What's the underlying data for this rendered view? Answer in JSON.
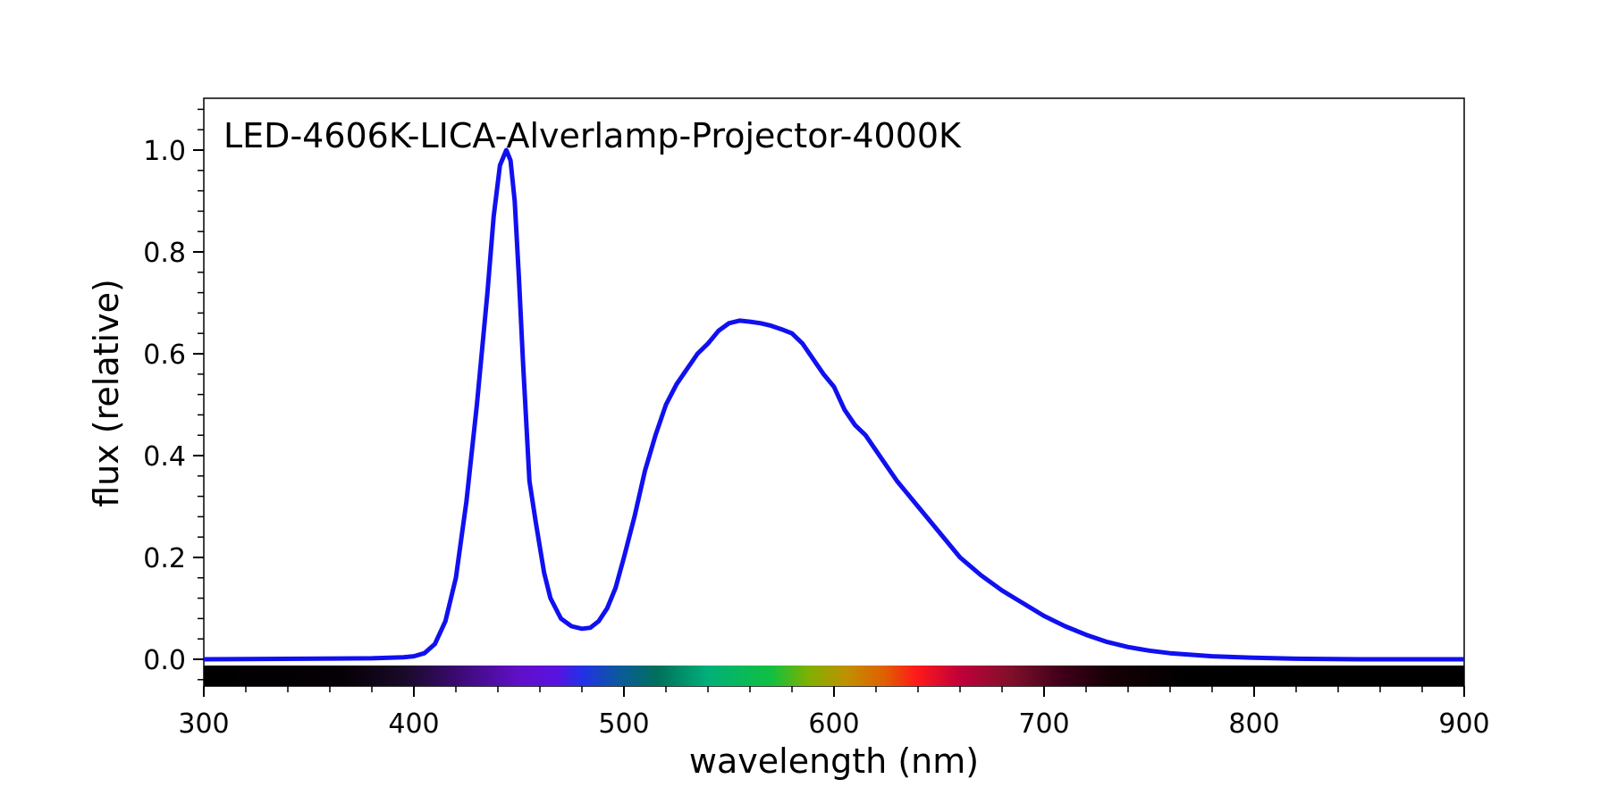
{
  "chart_data": {
    "type": "line",
    "title": "LED-4606K-LICA-Alverlamp-Projector-4000K",
    "xlabel": "wavelength (nm)",
    "ylabel": "flux (relative)",
    "xlim": [
      300,
      900
    ],
    "ylim": [
      -0.05,
      1.1
    ],
    "x_ticks": [
      "300",
      "400",
      "500",
      "600",
      "700",
      "800",
      "900"
    ],
    "y_ticks": [
      "0.0",
      "0.2",
      "0.4",
      "0.6",
      "0.8",
      "1.0"
    ],
    "grid": false,
    "legend": "none",
    "series_color": "#1010f0",
    "spectrum_bar": true,
    "series": [
      {
        "x": [
          300,
          380,
          395,
          400,
          405,
          410,
          415,
          420,
          425,
          430,
          435,
          438,
          441,
          444,
          446,
          448,
          450,
          452,
          455,
          458,
          462,
          465,
          470,
          475,
          480,
          484,
          488,
          492,
          496,
          500,
          505,
          510,
          515,
          520,
          525,
          530,
          535,
          540,
          545,
          550,
          555,
          560,
          565,
          570,
          575,
          580,
          585,
          590,
          595,
          600,
          605,
          610,
          615,
          620,
          630,
          640,
          650,
          660,
          670,
          680,
          690,
          700,
          710,
          720,
          730,
          740,
          750,
          760,
          780,
          800,
          820,
          850,
          900
        ],
        "y": [
          0.0,
          0.002,
          0.004,
          0.006,
          0.012,
          0.03,
          0.075,
          0.16,
          0.31,
          0.5,
          0.72,
          0.87,
          0.97,
          1.0,
          0.98,
          0.9,
          0.75,
          0.58,
          0.35,
          0.27,
          0.17,
          0.12,
          0.08,
          0.065,
          0.06,
          0.062,
          0.075,
          0.1,
          0.14,
          0.2,
          0.28,
          0.37,
          0.44,
          0.5,
          0.54,
          0.57,
          0.6,
          0.62,
          0.645,
          0.66,
          0.665,
          0.663,
          0.66,
          0.655,
          0.648,
          0.64,
          0.62,
          0.59,
          0.56,
          0.535,
          0.49,
          0.46,
          0.44,
          0.41,
          0.35,
          0.3,
          0.25,
          0.2,
          0.165,
          0.135,
          0.11,
          0.085,
          0.065,
          0.048,
          0.034,
          0.024,
          0.017,
          0.012,
          0.006,
          0.003,
          0.001,
          0.0,
          0.0
        ]
      }
    ]
  }
}
